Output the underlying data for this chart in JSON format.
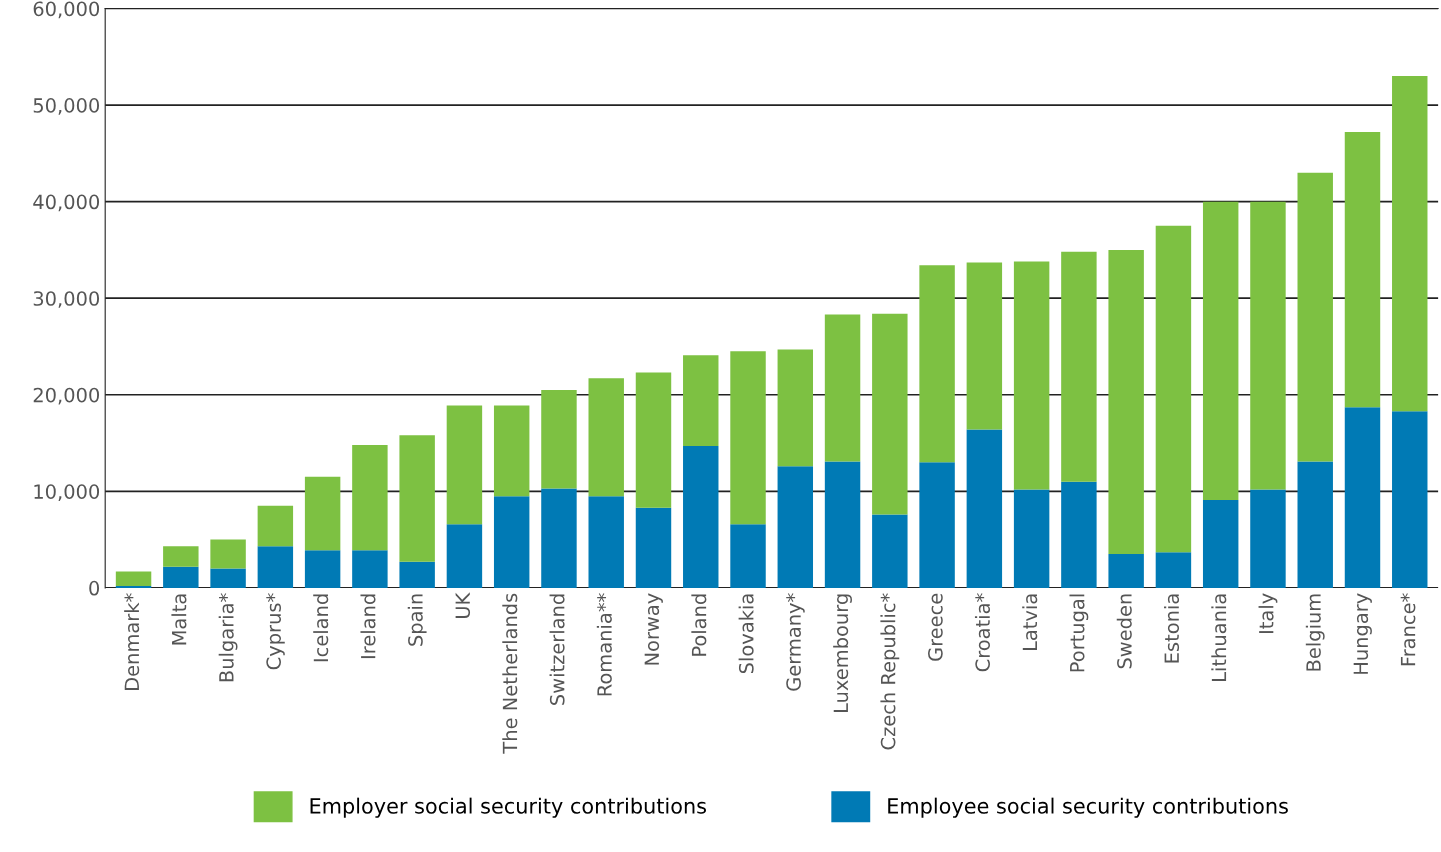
{
  "chart_data": {
    "type": "bar",
    "stacked": true,
    "categories": [
      "Denmark*",
      "Malta",
      "Bulgaria*",
      "Cyprus*",
      "Iceland",
      "Ireland",
      "Spain",
      "UK",
      "The Netherlands",
      "Switzerland",
      "Romania**",
      "Norway",
      "Poland",
      "Slovakia",
      "Germany*",
      "Luxembourg",
      "Czech Republic*",
      "Greece",
      "Croatia*",
      "Latvia",
      "Portugal",
      "Sweden",
      "Estonia",
      "Lithuania",
      "Italy",
      "Belgium",
      "Hungary",
      "France*"
    ],
    "series": [
      {
        "name": "Employee social security contributions",
        "color": "#007ab5",
        "values": [
          200,
          2200,
          2000,
          4300,
          3900,
          3900,
          2700,
          6600,
          9500,
          10300,
          9500,
          8300,
          14700,
          6600,
          12600,
          13100,
          7600,
          13000,
          16400,
          10200,
          11000,
          3500,
          3700,
          9100,
          10200,
          13100,
          18700,
          18300
        ]
      },
      {
        "name": "Employer social security contributions",
        "color": "#7dc142",
        "values": [
          1500,
          2100,
          3000,
          4200,
          7600,
          10900,
          13100,
          12300,
          9400,
          10200,
          12200,
          14000,
          9400,
          17900,
          12100,
          15200,
          20800,
          20400,
          17300,
          23600,
          23800,
          31500,
          33800,
          30900,
          29800,
          29900,
          28500,
          34700
        ]
      }
    ],
    "ylim": [
      0,
      60000
    ],
    "yticks": [
      0,
      {
        "value": 10000,
        "label": "10,000"
      },
      {
        "value": 20000,
        "label": "20,000"
      },
      {
        "value": 30000,
        "label": "30,000"
      },
      {
        "value": 40000,
        "label": "40,000"
      },
      {
        "value": 50000,
        "label": "50,000"
      },
      {
        "value": 60000,
        "label": "60,000"
      }
    ],
    "grid": "y",
    "legend": "bottom"
  }
}
